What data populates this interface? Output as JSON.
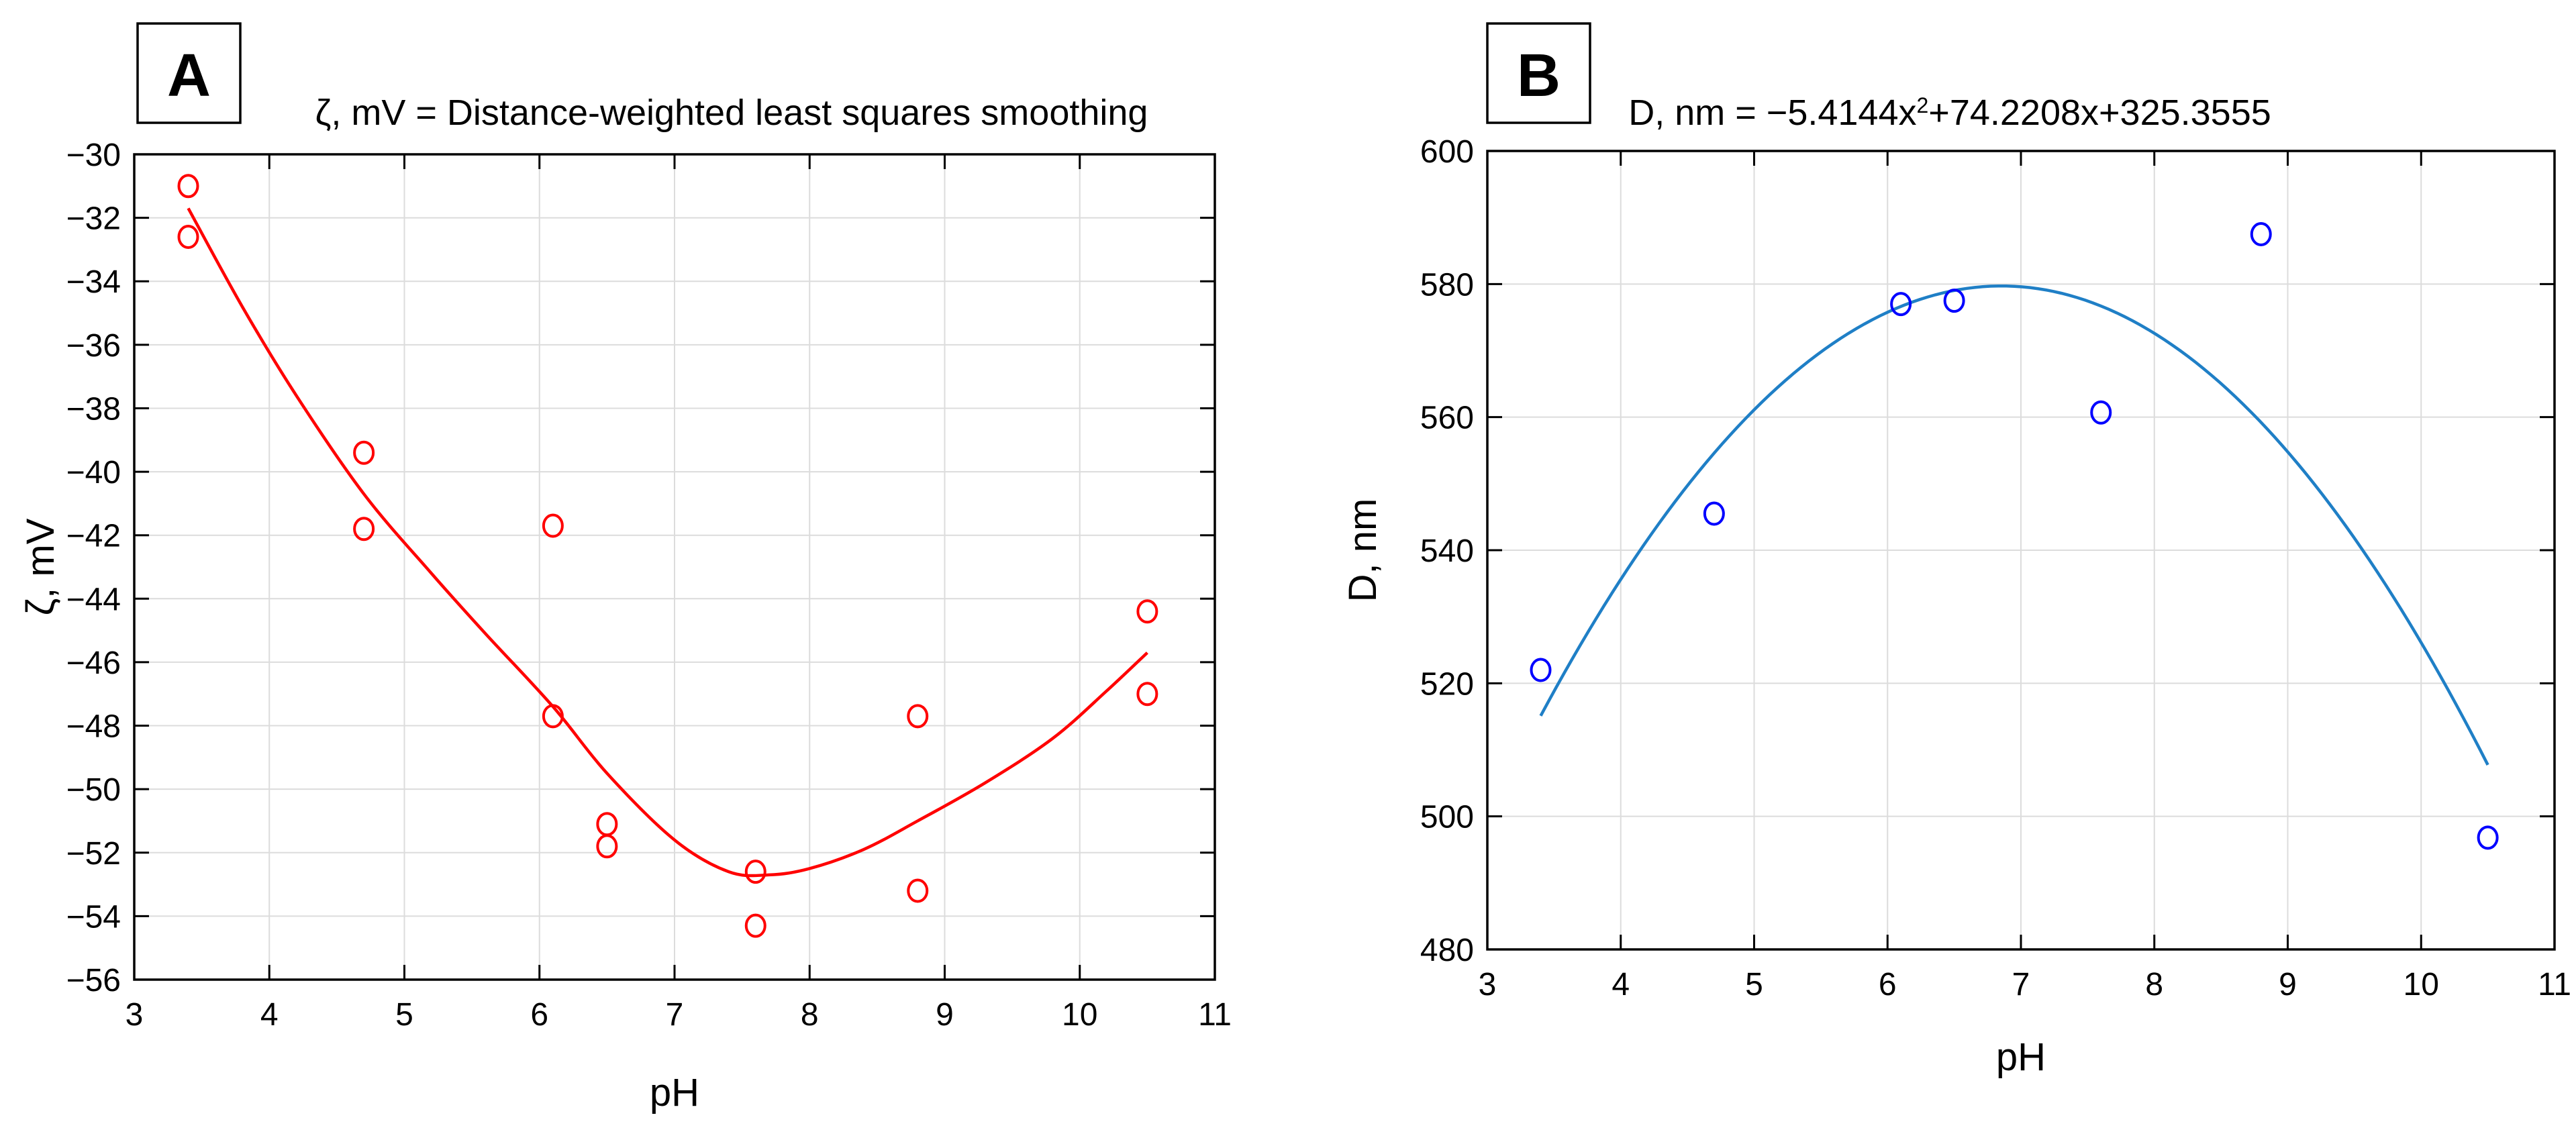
{
  "chart_data": [
    {
      "panel": "A",
      "type": "scatter",
      "title": "ζ, mV = Distance-weighted least squares smoothing",
      "xlabel": "pH",
      "ylabel": "ζ, mV",
      "xlim": [
        3,
        11
      ],
      "ylim": [
        -56,
        -30
      ],
      "xticks": [
        3,
        4,
        5,
        6,
        7,
        8,
        9,
        10,
        11
      ],
      "yticks": [
        -56,
        -54,
        -52,
        -50,
        -48,
        -46,
        -44,
        -42,
        -40,
        -38,
        -36,
        -34,
        -32,
        -30
      ],
      "grid": true,
      "color": "#ff0000",
      "points": [
        {
          "x": 3.4,
          "y": -31.0
        },
        {
          "x": 3.4,
          "y": -32.6
        },
        {
          "x": 4.7,
          "y": -39.4
        },
        {
          "x": 4.7,
          "y": -41.8
        },
        {
          "x": 6.1,
          "y": -41.7
        },
        {
          "x": 6.1,
          "y": -47.7
        },
        {
          "x": 6.5,
          "y": -51.1
        },
        {
          "x": 6.5,
          "y": -51.8
        },
        {
          "x": 7.6,
          "y": -52.6
        },
        {
          "x": 7.6,
          "y": -54.3
        },
        {
          "x": 8.8,
          "y": -47.7
        },
        {
          "x": 8.8,
          "y": -53.2
        },
        {
          "x": 10.5,
          "y": -44.4
        },
        {
          "x": 10.5,
          "y": -47.0
        }
      ],
      "fit": {
        "name": "Distance-weighted least squares smoothing",
        "x": [
          3.4,
          3.8,
          4.2,
          4.7,
          5.2,
          5.6,
          6.1,
          6.5,
          7.0,
          7.4,
          7.7,
          8.0,
          8.4,
          8.8,
          9.3,
          9.8,
          10.2,
          10.5
        ],
        "y": [
          -31.7,
          -34.8,
          -37.6,
          -40.7,
          -43.2,
          -45.1,
          -47.4,
          -49.5,
          -51.6,
          -52.6,
          -52.7,
          -52.5,
          -51.9,
          -51.0,
          -49.8,
          -48.4,
          -46.9,
          -45.7
        ]
      }
    },
    {
      "panel": "B",
      "type": "scatter",
      "title": "D, nm = −5.4144x²+74.2208x+325.3555",
      "title_main": "D, nm = −5.4144x",
      "title_sup": "2",
      "title_tail": "+74.2208x+325.3555",
      "xlabel": "pH",
      "ylabel": "D, nm",
      "xlim": [
        3,
        11
      ],
      "ylim": [
        480,
        600
      ],
      "xticks": [
        3,
        4,
        5,
        6,
        7,
        8,
        9,
        10,
        11
      ],
      "yticks": [
        480,
        500,
        520,
        540,
        560,
        580,
        600
      ],
      "grid": true,
      "color": "#0000ff",
      "fit_color": "#1f7fc6",
      "points": [
        {
          "x": 3.4,
          "y": 522
        },
        {
          "x": 4.7,
          "y": 545.5
        },
        {
          "x": 6.1,
          "y": 577
        },
        {
          "x": 6.5,
          "y": 577.5
        },
        {
          "x": 7.6,
          "y": 560.7
        },
        {
          "x": 8.8,
          "y": 587.5
        },
        {
          "x": 10.5,
          "y": 496.8
        }
      ],
      "fit": {
        "name": "quadratic",
        "a": -5.4144,
        "b": 74.2208,
        "c": 325.3555,
        "xrange": [
          3.4,
          10.5
        ]
      }
    }
  ]
}
